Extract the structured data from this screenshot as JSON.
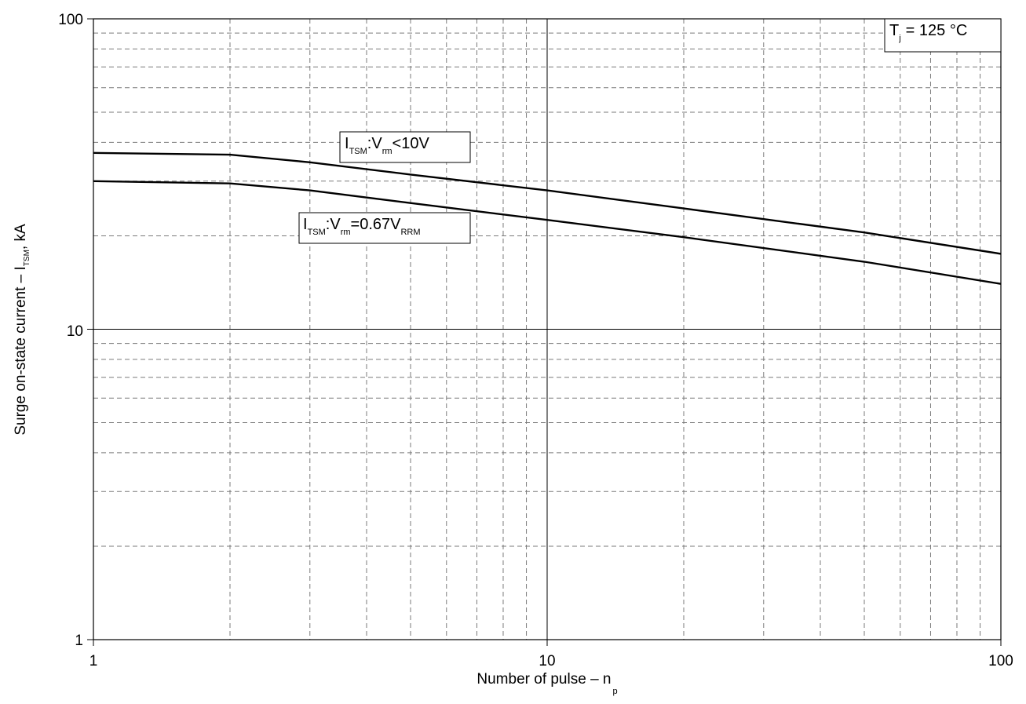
{
  "chart_data": {
    "type": "line",
    "xscale": "log",
    "yscale": "log",
    "xlim": [
      1,
      100
    ],
    "ylim": [
      1,
      100
    ],
    "grid": true,
    "xlabel": {
      "main": "Number of pulse – n",
      "sub": "p"
    },
    "ylabel": {
      "main": "Surge on-state current – I",
      "sub": "TSM",
      "tail": ", kA"
    },
    "x_tick_labels": [
      "1",
      "10",
      "100"
    ],
    "y_tick_labels": [
      "1",
      "10",
      "100"
    ],
    "series": [
      {
        "label_parts": [
          "I",
          "TSM",
          ":V",
          "rm",
          "<10V"
        ],
        "x": [
          1,
          2,
          3,
          5,
          10,
          20,
          50,
          100
        ],
        "y": [
          37.0,
          36.5,
          34.5,
          31.5,
          28.0,
          24.5,
          20.5,
          17.5
        ]
      },
      {
        "label_parts": [
          "I",
          "TSM",
          ":V",
          "rm",
          "=0.67V",
          "RRM"
        ],
        "x": [
          1,
          2,
          3,
          5,
          10,
          20,
          50,
          100
        ],
        "y": [
          30.0,
          29.5,
          28.0,
          25.5,
          22.5,
          19.8,
          16.5,
          14.0
        ]
      }
    ],
    "annotation": {
      "parts": [
        "T",
        "j",
        "= 125 °C"
      ]
    }
  }
}
